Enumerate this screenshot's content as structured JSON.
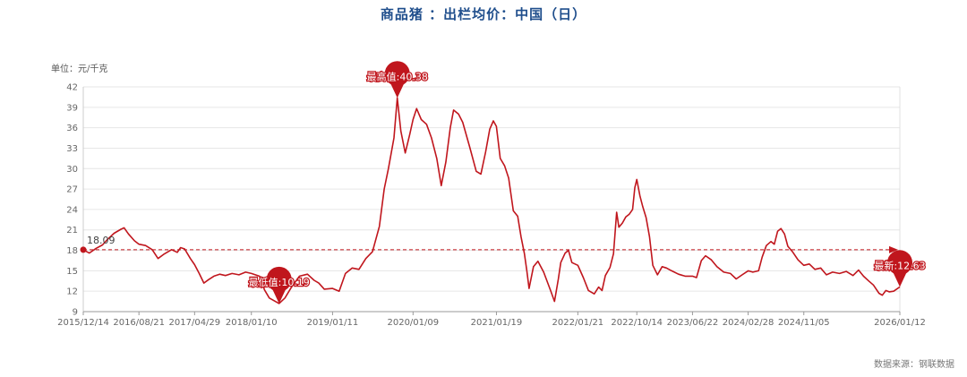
{
  "title": "商品猪 ：出栏均价：中国（日）",
  "unit_label": "单位：元/千克",
  "source_label": "数据来源：钢联数据",
  "colors": {
    "line": "#c0161d",
    "marker": "#c0161d",
    "grid": "#e6e6e6",
    "ref_line": "#c0161d"
  },
  "chart_data": {
    "type": "line",
    "title": "商品猪 ：出栏均价：中国（日）",
    "ylabel": "单位：元/千克",
    "ylim": [
      9,
      42
    ],
    "yticks": [
      9,
      12,
      15,
      18,
      21,
      24,
      27,
      30,
      33,
      36,
      39,
      42
    ],
    "xticks": [
      "2015/12/14",
      "2016/08/21",
      "2017/04/29",
      "2018/01/10",
      "2019/01/11",
      "2020/01/09",
      "2021/01/19",
      "2022/01/21",
      "2022/10/14",
      "2023/06/22",
      "2024/02/28",
      "2024/11/05",
      "2026/01/12"
    ],
    "grid": "horizontal",
    "start_label": "18.09",
    "annotations": [
      {
        "kind": "max",
        "label": "最高值:40.38",
        "x": "2019/10/30",
        "y": 40.38
      },
      {
        "kind": "min",
        "label": "最低值:10.19",
        "x": "2018/05/15",
        "y": 10.19
      },
      {
        "kind": "latest",
        "label": "最新:12.63",
        "x": "2026/01/12",
        "y": 12.63
      }
    ],
    "series": [
      {
        "values": [
          [
            "2015/12/14",
            18.09
          ],
          [
            "2016/01/10",
            17.6
          ],
          [
            "2016/02/10",
            18.3
          ],
          [
            "2016/03/10",
            18.8
          ],
          [
            "2016/04/01",
            19.6
          ],
          [
            "2016/05/01",
            20.5
          ],
          [
            "2016/06/01",
            21.1
          ],
          [
            "2016/06/15",
            21.3
          ],
          [
            "2016/07/05",
            20.4
          ],
          [
            "2016/08/01",
            19.4
          ],
          [
            "2016/08/21",
            18.9
          ],
          [
            "2016/09/20",
            18.7
          ],
          [
            "2016/10/20",
            18.1
          ],
          [
            "2016/11/15",
            16.8
          ],
          [
            "2016/12/10",
            17.4
          ],
          [
            "2017/01/15",
            18.1
          ],
          [
            "2017/02/10",
            17.7
          ],
          [
            "2017/02/25",
            18.4
          ],
          [
            "2017/03/15",
            18.2
          ],
          [
            "2017/04/10",
            16.8
          ],
          [
            "2017/04/29",
            15.9
          ],
          [
            "2017/05/20",
            14.6
          ],
          [
            "2017/06/10",
            13.2
          ],
          [
            "2017/07/01",
            13.7
          ],
          [
            "2017/07/25",
            14.2
          ],
          [
            "2017/08/20",
            14.5
          ],
          [
            "2017/09/15",
            14.3
          ],
          [
            "2017/10/15",
            14.6
          ],
          [
            "2017/11/15",
            14.4
          ],
          [
            "2017/12/15",
            14.8
          ],
          [
            "2018/01/10",
            14.6
          ],
          [
            "2018/02/15",
            14.2
          ],
          [
            "2018/03/10",
            12.2
          ],
          [
            "2018/04/01",
            11.0
          ],
          [
            "2018/05/15",
            10.19
          ],
          [
            "2018/06/10",
            11.0
          ],
          [
            "2018/07/10",
            12.6
          ],
          [
            "2018/08/15",
            14.2
          ],
          [
            "2018/09/20",
            14.5
          ],
          [
            "2018/10/20",
            13.6
          ],
          [
            "2018/11/10",
            13.2
          ],
          [
            "2018/12/05",
            12.3
          ],
          [
            "2019/01/11",
            12.4
          ],
          [
            "2019/02/10",
            12.0
          ],
          [
            "2019/03/10",
            14.6
          ],
          [
            "2019/04/10",
            15.4
          ],
          [
            "2019/05/10",
            15.2
          ],
          [
            "2019/06/10",
            16.8
          ],
          [
            "2019/07/10",
            17.8
          ],
          [
            "2019/08/10",
            21.5
          ],
          [
            "2019/09/01",
            27.0
          ],
          [
            "2019/09/20",
            30.0
          ],
          [
            "2019/10/15",
            34.5
          ],
          [
            "2019/10/30",
            40.38
          ],
          [
            "2019/11/15",
            35.5
          ],
          [
            "2019/12/05",
            32.3
          ],
          [
            "2019/12/25",
            35.0
          ],
          [
            "2020/01/09",
            37.2
          ],
          [
            "2020/01/25",
            38.8
          ],
          [
            "2020/02/15",
            37.2
          ],
          [
            "2020/03/10",
            36.5
          ],
          [
            "2020/04/01",
            34.5
          ],
          [
            "2020/04/25",
            31.5
          ],
          [
            "2020/05/15",
            27.5
          ],
          [
            "2020/06/05",
            31.0
          ],
          [
            "2020/06/25",
            36.0
          ],
          [
            "2020/07/10",
            38.6
          ],
          [
            "2020/08/01",
            38.0
          ],
          [
            "2020/08/20",
            36.8
          ],
          [
            "2020/09/20",
            33.2
          ],
          [
            "2020/10/20",
            29.6
          ],
          [
            "2020/11/10",
            29.2
          ],
          [
            "2020/12/01",
            32.4
          ],
          [
            "2020/12/20",
            35.8
          ],
          [
            "2021/01/05",
            37.0
          ],
          [
            "2021/01/19",
            36.2
          ],
          [
            "2021/02/05",
            31.5
          ],
          [
            "2021/02/25",
            30.4
          ],
          [
            "2021/03/15",
            28.6
          ],
          [
            "2021/04/05",
            23.8
          ],
          [
            "2021/04/25",
            23.0
          ],
          [
            "2021/05/10",
            20.0
          ],
          [
            "2021/05/25",
            17.5
          ],
          [
            "2021/06/05",
            15.0
          ],
          [
            "2021/06/15",
            12.4
          ],
          [
            "2021/07/05",
            15.6
          ],
          [
            "2021/07/25",
            16.4
          ],
          [
            "2021/08/20",
            14.8
          ],
          [
            "2021/09/20",
            12.1
          ],
          [
            "2021/10/08",
            10.5
          ],
          [
            "2021/10/25",
            13.8
          ],
          [
            "2021/11/05",
            16.2
          ],
          [
            "2021/11/25",
            17.6
          ],
          [
            "2021/12/10",
            18.0
          ],
          [
            "2021/12/25",
            16.2
          ],
          [
            "2022/01/21",
            15.8
          ],
          [
            "2022/02/15",
            14.0
          ],
          [
            "2022/03/10",
            12.1
          ],
          [
            "2022/04/05",
            11.6
          ],
          [
            "2022/04/25",
            12.6
          ],
          [
            "2022/05/10",
            12.1
          ],
          [
            "2022/05/25",
            14.3
          ],
          [
            "2022/06/15",
            15.5
          ],
          [
            "2022/07/01",
            17.5
          ],
          [
            "2022/07/15",
            23.6
          ],
          [
            "2022/07/25",
            21.4
          ],
          [
            "2022/08/10",
            22.0
          ],
          [
            "2022/08/25",
            22.9
          ],
          [
            "2022/09/10",
            23.3
          ],
          [
            "2022/09/25",
            24.0
          ],
          [
            "2022/10/05",
            27.2
          ],
          [
            "2022/10/14",
            28.4
          ],
          [
            "2022/10/28",
            26.0
          ],
          [
            "2022/11/10",
            24.4
          ],
          [
            "2022/11/25",
            22.8
          ],
          [
            "2022/12/10",
            20.0
          ],
          [
            "2022/12/25",
            15.8
          ],
          [
            "2023/01/15",
            14.4
          ],
          [
            "2023/02/05",
            15.6
          ],
          [
            "2023/02/25",
            15.4
          ],
          [
            "2023/03/20",
            15.0
          ],
          [
            "2023/04/20",
            14.5
          ],
          [
            "2023/05/20",
            14.2
          ],
          [
            "2023/06/22",
            14.2
          ],
          [
            "2023/07/10",
            14.0
          ],
          [
            "2023/08/01",
            16.5
          ],
          [
            "2023/08/20",
            17.2
          ],
          [
            "2023/09/15",
            16.6
          ],
          [
            "2023/10/10",
            15.6
          ],
          [
            "2023/11/10",
            14.8
          ],
          [
            "2023/12/10",
            14.6
          ],
          [
            "2024/01/05",
            13.8
          ],
          [
            "2024/02/01",
            14.4
          ],
          [
            "2024/02/28",
            15.0
          ],
          [
            "2024/03/20",
            14.8
          ],
          [
            "2024/04/15",
            15.0
          ],
          [
            "2024/05/01",
            17.0
          ],
          [
            "2024/05/20",
            18.7
          ],
          [
            "2024/06/10",
            19.3
          ],
          [
            "2024/06/25",
            18.9
          ],
          [
            "2024/07/10",
            20.8
          ],
          [
            "2024/07/25",
            21.2
          ],
          [
            "2024/08/10",
            20.4
          ],
          [
            "2024/08/25",
            18.6
          ],
          [
            "2024/09/15",
            17.8
          ],
          [
            "2024/10/10",
            16.6
          ],
          [
            "2024/11/05",
            15.8
          ],
          [
            "2024/11/30",
            16.0
          ],
          [
            "2024/12/25",
            15.2
          ],
          [
            "2025/01/20",
            15.4
          ],
          [
            "2025/02/15",
            14.4
          ],
          [
            "2025/03/15",
            14.8
          ],
          [
            "2025/04/15",
            14.6
          ],
          [
            "2025/05/15",
            14.9
          ],
          [
            "2025/06/15",
            14.3
          ],
          [
            "2025/07/10",
            15.1
          ],
          [
            "2025/08/01",
            14.2
          ],
          [
            "2025/08/25",
            13.5
          ],
          [
            "2025/09/15",
            12.9
          ],
          [
            "2025/10/10",
            11.7
          ],
          [
            "2025/10/25",
            11.4
          ],
          [
            "2025/11/10",
            12.1
          ],
          [
            "2025/11/25",
            11.9
          ],
          [
            "2025/12/15",
            12.0
          ],
          [
            "2026/01/12",
            12.63
          ]
        ]
      }
    ]
  }
}
